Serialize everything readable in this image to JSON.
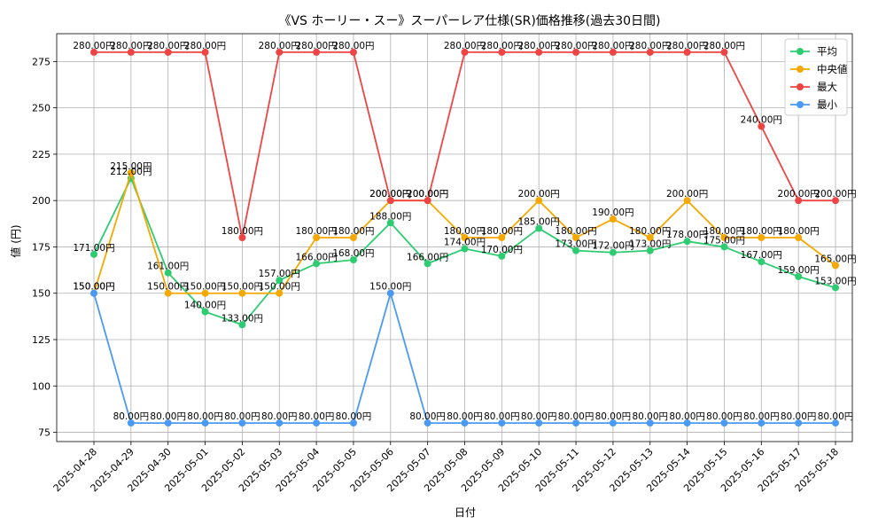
{
  "chart_data": {
    "type": "line",
    "title": "《VS ホーリー・スー》スーパーレア仕様(SR)価格推移(過去30日間)",
    "xlabel": "日付",
    "ylabel": "値 (円)",
    "ylim": [
      70,
      290
    ],
    "yticks": [
      75,
      100,
      125,
      150,
      175,
      200,
      225,
      250,
      275
    ],
    "grid": true,
    "legend_position": "top-right",
    "label_suffix": "円",
    "x": [
      "2025-04-28",
      "2025-04-29",
      "2025-04-30",
      "2025-05-01",
      "2025-05-02",
      "2025-05-03",
      "2025-05-04",
      "2025-05-05",
      "2025-05-06",
      "2025-05-07",
      "2025-05-08",
      "2025-05-09",
      "2025-05-10",
      "2025-05-11",
      "2025-05-12",
      "2025-05-13",
      "2025-05-14",
      "2025-05-15",
      "2025-05-16",
      "2025-05-17",
      "2025-05-18"
    ],
    "series": [
      {
        "name": "平均",
        "color": "#2ecc71",
        "values": [
          171,
          212,
          161,
          140,
          133,
          157,
          166,
          168,
          188,
          166,
          174,
          170,
          185,
          173,
          172,
          173,
          178,
          175,
          167,
          159,
          153
        ]
      },
      {
        "name": "中央値",
        "color": "#f5a800",
        "values": [
          150,
          215,
          150,
          150,
          150,
          150,
          180,
          180,
          200,
          200,
          180,
          180,
          200,
          180,
          190,
          180,
          200,
          180,
          180,
          180,
          165
        ]
      },
      {
        "name": "最大",
        "color": "#ef4444",
        "values": [
          280,
          280,
          280,
          280,
          180,
          280,
          280,
          280,
          200,
          200,
          280,
          280,
          280,
          280,
          280,
          280,
          280,
          280,
          240,
          200,
          200
        ]
      },
      {
        "name": "最小",
        "color": "#4a9af5",
        "values": [
          150,
          80,
          80,
          80,
          80,
          80,
          80,
          80,
          150,
          80,
          80,
          80,
          80,
          80,
          80,
          80,
          80,
          80,
          80,
          80,
          80
        ]
      }
    ]
  }
}
